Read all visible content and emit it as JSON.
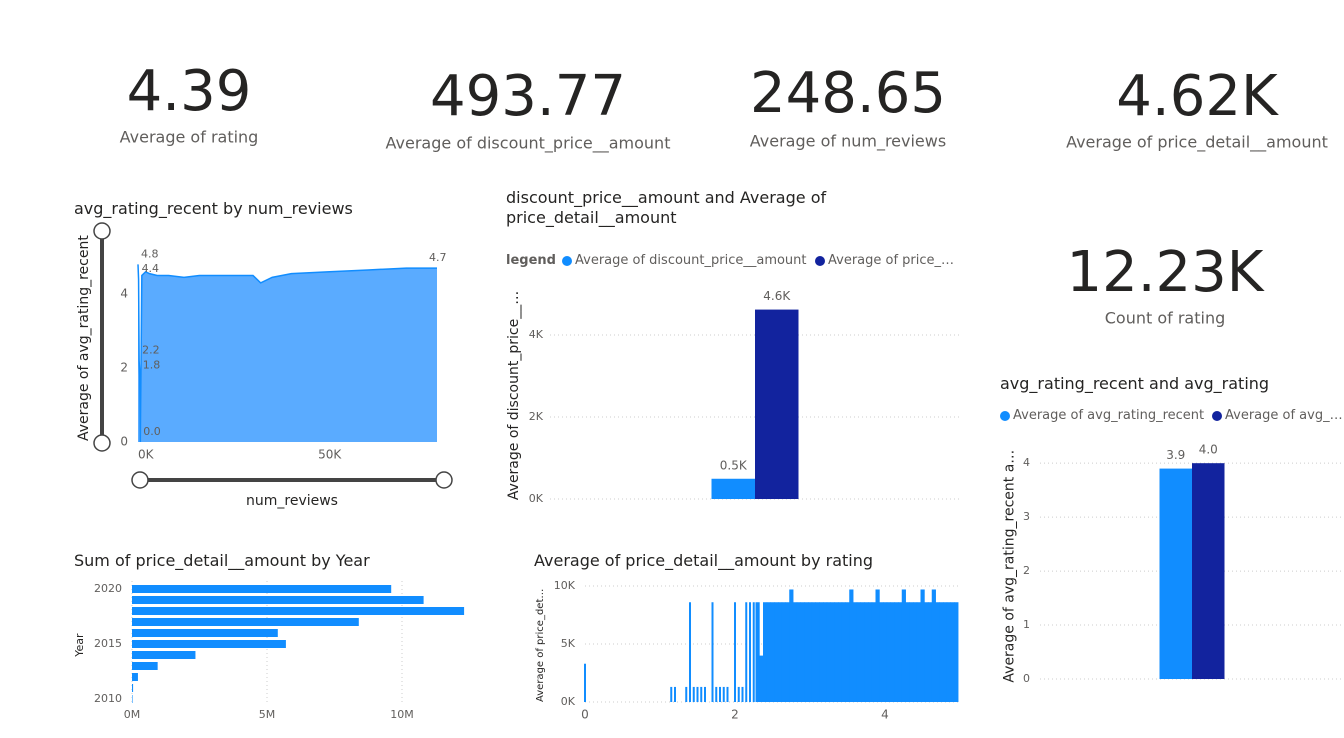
{
  "cards": [
    {
      "value": "4.39",
      "label": "Average of rating"
    },
    {
      "value": "493.77",
      "label": "Average of discount_price__amount"
    },
    {
      "value": "248.65",
      "label": "Average of num_reviews"
    },
    {
      "value": "4.62K",
      "label": "Average of price_detail__amount"
    },
    {
      "value": "12.23K",
      "label": "Count of rating"
    }
  ],
  "chart_data": [
    {
      "type": "area",
      "title": "avg_rating_recent by num_reviews",
      "x_label": "num_reviews",
      "y_label": "Average of avg_rating_recent",
      "x": [
        0,
        150,
        300,
        450,
        600,
        1000,
        2000,
        3000,
        5000,
        8000,
        12000,
        16000,
        20000,
        25000,
        30000,
        32000,
        35000,
        40000,
        50000,
        60000,
        70000,
        78000
      ],
      "series": [
        {
          "name": "avg_rating_recent",
          "color": "#118dff",
          "values": [
            4.8,
            4.4,
            2.2,
            1.8,
            0,
            4.5,
            4.6,
            4.55,
            4.5,
            4.5,
            4.45,
            4.5,
            4.5,
            4.5,
            4.5,
            4.3,
            4.45,
            4.55,
            4.6,
            4.65,
            4.7,
            4.7
          ],
          "value_labels": [
            "4.8",
            "4.4",
            "2.2",
            "1.8",
            "0.0",
            null,
            null,
            null,
            null,
            null,
            null,
            null,
            null,
            null,
            null,
            null,
            null,
            null,
            null,
            null,
            null,
            "4.7"
          ]
        }
      ],
      "xlim": [
        0,
        78000
      ],
      "xticks": [
        {
          "value": 0,
          "label": "0K"
        },
        {
          "value": 50000,
          "label": "50K"
        }
      ],
      "ylim": [
        0,
        5
      ],
      "yticks": [
        0,
        2,
        4
      ],
      "grid": false
    },
    {
      "type": "column",
      "title": "discount_price__amount and Average of price_detail__amount",
      "legend_title": "legend",
      "y_label": "Average of discount_price__amount",
      "categories": [
        null
      ],
      "series": [
        {
          "name": "Average of discount_price__amount",
          "color": "#118dff",
          "values": [
            493.77
          ],
          "value_labels": [
            "0.5K"
          ]
        },
        {
          "name": "Average of price_detail__amount",
          "color": "#12239e",
          "values": [
            4620
          ],
          "value_labels": [
            "4.6K"
          ]
        }
      ],
      "ylim": [
        0,
        5000
      ],
      "yticks": [
        {
          "value": 0,
          "label": "0K"
        },
        {
          "value": 2000,
          "label": "2K"
        },
        {
          "value": 4000,
          "label": "4K"
        }
      ],
      "grid": true
    },
    {
      "type": "column",
      "title": "avg_rating_recent and avg_rating",
      "y_label": "Average of avg_rating_recent and avg_rating",
      "categories": [
        null
      ],
      "series": [
        {
          "name": "Average of avg_rating_recent",
          "color": "#118dff",
          "values": [
            3.9
          ]
        },
        {
          "name": "Average of avg_rating",
          "color": "#12239e",
          "values": [
            4
          ],
          "value_labels": [
            "4.0"
          ]
        }
      ],
      "ylim": [
        0,
        4.3
      ],
      "yticks": [
        0,
        1,
        2,
        3,
        4
      ],
      "grid": true
    },
    {
      "type": "hbar",
      "title": "Sum of price_detail__amount by Year",
      "y_label": "Year",
      "categories": [
        2020,
        2019,
        2018,
        2017,
        2016,
        2015,
        2014,
        2013,
        2012,
        2011,
        2010
      ],
      "series": [
        {
          "name": "Sum of price_detail__amount",
          "color": "#118dff",
          "values": [
            9600000,
            10800000,
            12300000,
            8400000,
            5400000,
            5700000,
            2350000,
            950000,
            220000,
            40000,
            20000
          ]
        }
      ],
      "ylim": [
        2010,
        2020
      ],
      "yticks": [
        2010,
        2015,
        2020
      ],
      "xlim": [
        0,
        14000000
      ],
      "xticks": [
        {
          "value": 0,
          "label": "0M"
        },
        {
          "value": 5000000,
          "label": "5M"
        },
        {
          "value": 10000000,
          "label": "10M"
        }
      ],
      "grid": true
    },
    {
      "type": "column",
      "title": "Average of price_detail__amount by rating",
      "y_label": "Average of price_detail__amount",
      "x": [
        0,
        1.15,
        1.2,
        1.35,
        1.4,
        1.45,
        1.5,
        1.55,
        1.6,
        1.7,
        1.75,
        1.8,
        1.85,
        1.9,
        2.0,
        2.05,
        2.1,
        2.15,
        2.2,
        2.25,
        2.3,
        2.35,
        2.4,
        2.45,
        2.5,
        2.55,
        2.6,
        2.65,
        2.7,
        2.75,
        2.8,
        2.85,
        2.9,
        2.95,
        3.0,
        3.05,
        3.1,
        3.15,
        3.2,
        3.25,
        3.3,
        3.35,
        3.4,
        3.45,
        3.5,
        3.55,
        3.6,
        3.65,
        3.7,
        3.75,
        3.8,
        3.85,
        3.9,
        3.95,
        4.0,
        4.05,
        4.1,
        4.15,
        4.2,
        4.25,
        4.3,
        4.35,
        4.4,
        4.45,
        4.5,
        4.55,
        4.6,
        4.65,
        4.7,
        4.75,
        4.8,
        4.85,
        4.9,
        4.95
      ],
      "series": [
        {
          "name": "Average of price_detail__amount",
          "color": "#118dff",
          "values": [
            3300,
            1300,
            1300,
            1300,
            8600,
            1300,
            1300,
            1300,
            1300,
            8600,
            1300,
            1300,
            1300,
            1300,
            8600,
            1300,
            1300,
            8600,
            8600,
            8600,
            8600,
            4000,
            8600,
            8600,
            8600,
            8600,
            8600,
            8600,
            8600,
            9700,
            8600,
            8600,
            8600,
            8600,
            8600,
            8600,
            8600,
            8600,
            8600,
            8600,
            8600,
            8600,
            8600,
            8600,
            8600,
            9700,
            8600,
            8600,
            8600,
            8600,
            8600,
            8600,
            9700,
            8600,
            8600,
            8600,
            8600,
            8600,
            8600,
            9700,
            8600,
            8600,
            8600,
            8600,
            9700,
            8600,
            8600,
            9700,
            8600,
            8600,
            8600,
            8600,
            8600,
            8600
          ]
        }
      ],
      "xlim": [
        0,
        5
      ],
      "xticks": [
        0,
        2,
        4
      ],
      "ylim": [
        0,
        10000
      ],
      "yticks": [
        {
          "value": 0,
          "label": "0K"
        },
        {
          "value": 5000,
          "label": "5K"
        },
        {
          "value": 10000,
          "label": "10K"
        }
      ],
      "grid": true
    }
  ]
}
